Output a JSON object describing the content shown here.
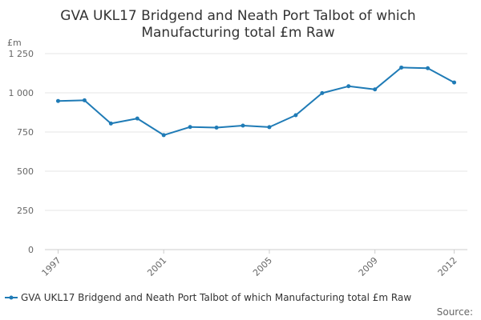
{
  "chart_data": {
    "type": "line",
    "title": "GVA UKL17 Bridgend and Neath Port Talbot of which Manufacturing total £m Raw",
    "title_lines": [
      "GVA UKL17 Bridgend and Neath Port Talbot of which",
      "Manufacturing total £m Raw"
    ],
    "ylabel": "£m",
    "xlabel": "",
    "ylim": [
      0,
      1250
    ],
    "yticks": [
      0,
      250,
      500,
      750,
      1000,
      1250
    ],
    "ytick_labels": [
      "0",
      "250",
      "500",
      "750",
      "1 000",
      "1 250"
    ],
    "xlim": [
      1997,
      2012
    ],
    "xticks": [
      1997,
      2001,
      2005,
      2009,
      2012
    ],
    "xtick_labels": [
      "1997",
      "2001",
      "2005",
      "2009",
      "2012"
    ],
    "grid": "horizontal",
    "legend_position": "bottom",
    "series": [
      {
        "name": "GVA UKL17 Bridgend and Neath Port Talbot of which Manufacturing total £m Raw",
        "color": "#1f7bb6",
        "x": [
          1997,
          1998,
          1999,
          2000,
          2001,
          2002,
          2003,
          2004,
          2005,
          2006,
          2007,
          2008,
          2009,
          2010,
          2011,
          2012
        ],
        "values": [
          948,
          952,
          804,
          836,
          730,
          782,
          778,
          791,
          781,
          857,
          998,
          1042,
          1022,
          1161,
          1157,
          1066
        ]
      }
    ],
    "source_label": "Source:"
  }
}
